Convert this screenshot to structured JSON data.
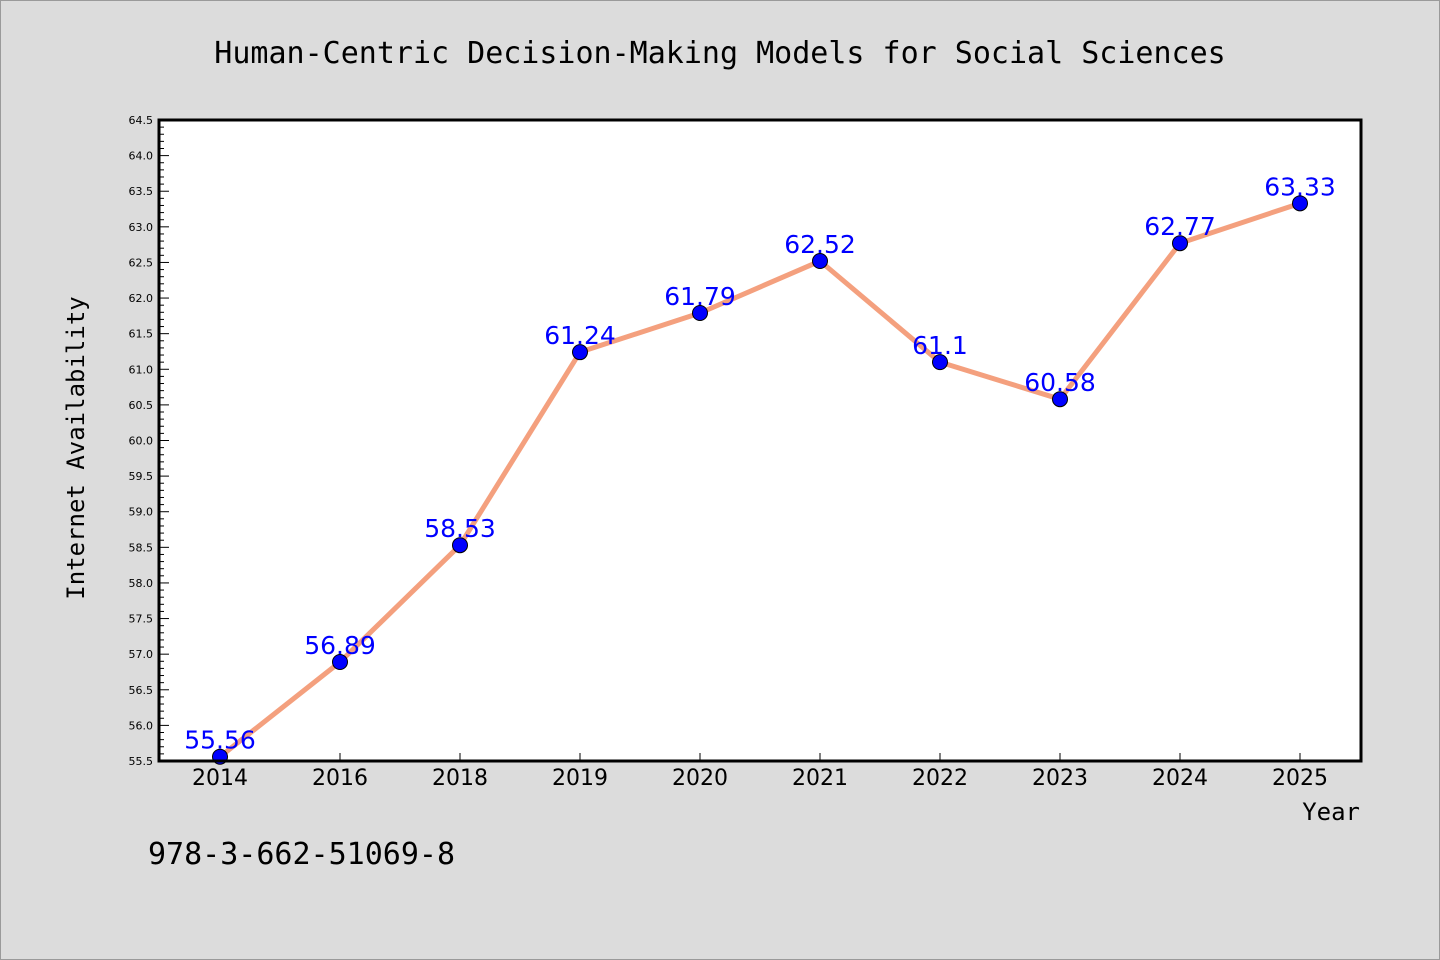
{
  "chart_data": {
    "type": "line",
    "title": "Human-Centric Decision-Making Models for Social Sciences",
    "xlabel": "Year",
    "ylabel": "Internet Availability",
    "categories": [
      "2014",
      "2016",
      "2018",
      "2019",
      "2020",
      "2021",
      "2022",
      "2023",
      "2024",
      "2025"
    ],
    "series": [
      {
        "values": [
          55.56,
          56.89,
          58.53,
          61.24,
          61.79,
          62.52,
          61.1,
          60.58,
          62.77,
          63.33
        ],
        "labels": [
          "55.56",
          "56.89",
          "58.53",
          "61.24",
          "61.79",
          "62.52",
          "61.1",
          "60.58",
          "62.77",
          "63.33"
        ],
        "line_color": "#f4a07e",
        "marker_color": "#0000ff"
      }
    ],
    "ylim": [
      55.5,
      64.5
    ],
    "yticks": [
      "55.5",
      "56.0",
      "56.5",
      "57.0",
      "57.5",
      "58.0",
      "58.5",
      "59.0",
      "59.5",
      "60.0",
      "60.5",
      "61.0",
      "61.5",
      "62.0",
      "62.5",
      "63.0",
      "63.5",
      "64.0",
      "64.5"
    ],
    "grid": false,
    "legend": "none"
  },
  "annotation": "978-3-662-51069-8"
}
